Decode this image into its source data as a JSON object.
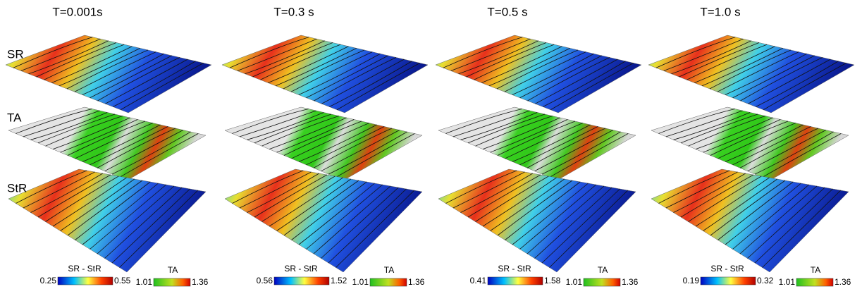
{
  "row_labels": [
    "SR",
    "TA",
    "StR"
  ],
  "panels": [
    {
      "title": "T=0.001s",
      "colorbars": [
        {
          "label": "SR - StR",
          "min": "0.25",
          "max": "0.55"
        },
        {
          "label": "TA",
          "min": "1.01",
          "max": "1.36"
        }
      ]
    },
    {
      "title": "T=0.3 s",
      "colorbars": [
        {
          "label": "SR - StR",
          "min": "0.56",
          "max": "1.52"
        },
        {
          "label": "TA",
          "min": "1.01",
          "max": "1.36"
        }
      ]
    },
    {
      "title": "T=0.5 s",
      "colorbars": [
        {
          "label": "SR - StR",
          "min": "0.41",
          "max": "1.58"
        },
        {
          "label": "TA",
          "min": "1.01",
          "max": "1.36"
        }
      ]
    },
    {
      "title": "T=1.0 s",
      "colorbars": [
        {
          "label": "SR - StR",
          "min": "0.19",
          "max": "0.32"
        },
        {
          "label": "TA",
          "min": "1.01",
          "max": "1.36"
        }
      ]
    }
  ]
}
